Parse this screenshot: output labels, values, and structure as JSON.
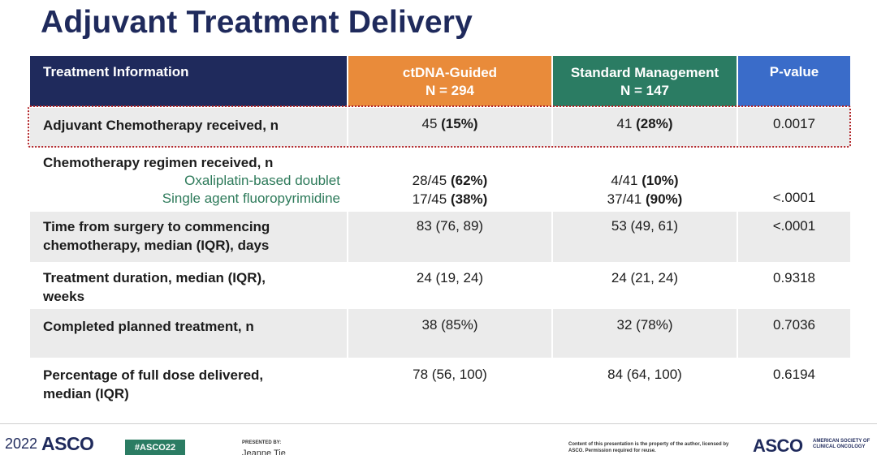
{
  "title": "Adjuvant Treatment Delivery",
  "header": {
    "info": "Treatment Information",
    "ctdna_line1": "ctDNA-Guided",
    "ctdna_line2": "N = 294",
    "standard_line1": "Standard Management",
    "standard_line2": "N = 147",
    "pvalue": "P-value"
  },
  "rows": [
    {
      "label": "Adjuvant Chemotherapy received, n",
      "ctdna_num": "45",
      "ctdna_pct": "(15%)",
      "standard_num": "41",
      "standard_pct": "(28%)",
      "p": "0.0017"
    },
    {
      "label": "Chemotherapy regimen received, n",
      "sub1": "Oxaliplatin-based doublet",
      "sub2": "Single agent fluoropyrimidine",
      "ctdna1_num": "28/45",
      "ctdna1_pct": "(62%)",
      "ctdna2_num": "17/45",
      "ctdna2_pct": "(38%)",
      "standard1_num": "4/41",
      "standard1_pct": "(10%)",
      "standard2_num": "37/41",
      "standard2_pct": "(90%)",
      "p": "<.0001"
    },
    {
      "label_line1": "Time from surgery to commencing",
      "label_line2": "chemotherapy, median (IQR), days",
      "ctdna": "83 (76, 89)",
      "standard": "53 (49, 61)",
      "p": "<.0001"
    },
    {
      "label_line1": "Treatment duration, median (IQR),",
      "label_line2": "weeks",
      "ctdna": "24 (19, 24)",
      "standard": "24 (21, 24)",
      "p": "0.9318"
    },
    {
      "label": "Completed planned treatment, n",
      "ctdna": "38 (85%)",
      "standard": "32 (78%)",
      "p": "0.7036"
    },
    {
      "label_line1": "Percentage of full dose delivered,",
      "label_line2": "median (IQR)",
      "ctdna": "78 (56, 100)",
      "standard": "84 (64, 100)",
      "p": "0.6194"
    }
  ],
  "footer": {
    "year": "2022",
    "asco": "ASCO",
    "hashtag": "#ASCO22",
    "presented_by": "PRESENTED BY:",
    "presenter": "Jeanne Tie",
    "notice": "Content of this presentation is the property of the author, licensed by ASCO. Permission required for reuse.",
    "asco_logo": "ASCO",
    "society": "AMERICAN SOCIETY OF CLINICAL ONCOLOGY"
  },
  "colors": {
    "navy": "#1f2a5c",
    "orange": "#e98b3a",
    "green": "#2b7c63",
    "blue": "#3a6cc9",
    "highlight_border": "#b3262a"
  }
}
